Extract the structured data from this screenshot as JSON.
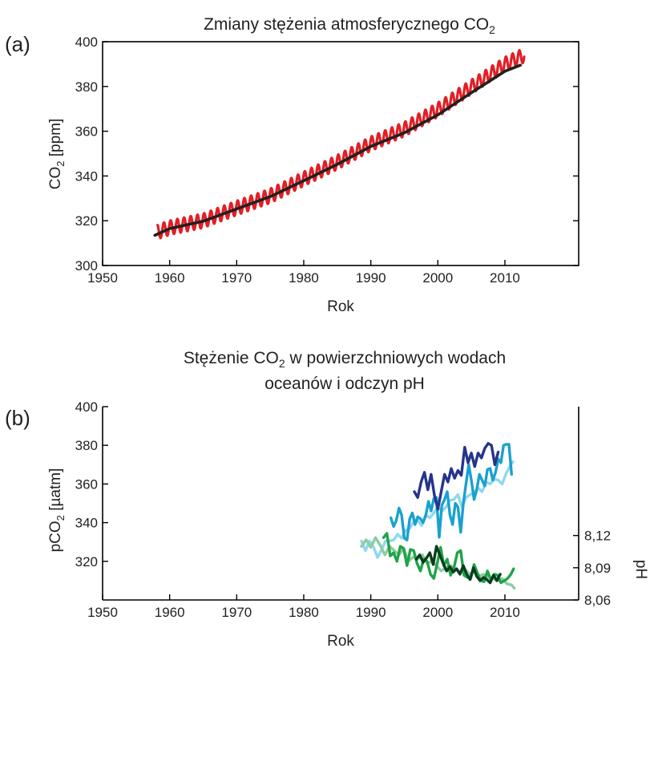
{
  "figure": {
    "panel_a_label": "(a)",
    "panel_b_label": "(b)"
  },
  "chart_data": [
    {
      "id": "a",
      "type": "line",
      "title": "Zmiany stężenia atmosferycznego CO",
      "title_subscript": "2",
      "xlabel": "Rok",
      "ylabel": "CO",
      "ylabel_subscript": "2",
      "ylabel_suffix": " [ppm]",
      "xlim": [
        1950,
        2021
      ],
      "ylim": [
        300,
        400
      ],
      "xticks": [
        1950,
        1960,
        1970,
        1980,
        1990,
        2000,
        2010
      ],
      "yticks": [
        300,
        320,
        340,
        360,
        380,
        400
      ],
      "colors": {
        "seasonal": "#e31e24",
        "trend": "#231f20"
      },
      "series": [
        {
          "key": "monthly",
          "color": "#e31e24",
          "start": 1958.2,
          "end": 2012.9,
          "amplitude": 3.2,
          "anchor_x": [
            1958.2,
            1960,
            1965,
            1970,
            1975,
            1980,
            1985,
            1990,
            1995,
            2000,
            2005,
            2010,
            2012.9
          ],
          "anchor_y": [
            315,
            316.9,
            320.0,
            325.7,
            331.1,
            338.7,
            346.1,
            354.4,
            360.9,
            369.6,
            379.8,
            389.9,
            394.0
          ]
        },
        {
          "key": "annual_mean",
          "color": "#231f20",
          "x": [
            1957.8,
            1960,
            1965,
            1970,
            1975,
            1980,
            1985,
            1990,
            1995,
            2000,
            2005,
            2010,
            2012.3
          ],
          "y": [
            313.5,
            316.5,
            319.8,
            325.3,
            330.8,
            337.9,
            345.2,
            353.2,
            359.3,
            367.3,
            377.2,
            386.8,
            389.5
          ]
        }
      ]
    },
    {
      "id": "b",
      "type": "line",
      "title_line1_pre": "Stężenie CO",
      "title_subscript": "2",
      "title_line1_post": " w powierzchniowych wodach",
      "title_line2": "oceanów i odczyn pH",
      "xlabel": "Rok",
      "ylabel": "pCO",
      "ylabel_subscript": "2",
      "ylabel_suffix": " [µatm]",
      "y2label": "pH",
      "xlim": [
        1950,
        2021
      ],
      "ylim": [
        300,
        400
      ],
      "y2lim": [
        8.06,
        8.24
      ],
      "xticks": [
        1950,
        1960,
        1970,
        1980,
        1990,
        2000,
        2010
      ],
      "yticks": [
        320,
        340,
        360,
        380,
        400
      ],
      "y2ticks": [
        "8,06",
        "8,09",
        "8,12"
      ],
      "y2tick_values": [
        8.06,
        8.09,
        8.12
      ],
      "series_pco2": [
        {
          "key": "pco2_light",
          "color": "#8ed8f0",
          "x": [
            1988.6,
            1989.2,
            1989.8,
            1990.4,
            1991.0,
            1991.6,
            1992.2,
            1992.8,
            1993.4,
            1994.0,
            1994.6,
            1995.2,
            1995.8,
            1996.4,
            1997.0,
            1997.6,
            1998.2,
            1998.8,
            1999.4,
            2000.0,
            2000.6,
            2001.2,
            2001.8,
            2002.4,
            2003.0,
            2003.6,
            2004.2,
            2004.8,
            2005.4,
            2006.0,
            2006.6,
            2007.2,
            2007.8,
            2008.4,
            2009.0,
            2009.6,
            2010.2,
            2010.8,
            2011.2
          ],
          "y": [
            330.5,
            325.5,
            330.5,
            327.5,
            322.0,
            326.0,
            330.5,
            330.5,
            331.0,
            334.0,
            332.0,
            336.0,
            337.0,
            340.5,
            341.0,
            338.5,
            344.0,
            342.5,
            345.0,
            348.0,
            346.0,
            348.0,
            351.5,
            352.0,
            354.5,
            348.0,
            353.0,
            354.5,
            355.5,
            358.0,
            356.0,
            361.0,
            360.0,
            362.5,
            362.0,
            360.0,
            365.5,
            369.5,
            371.5
          ]
        },
        {
          "key": "pco2_medium",
          "color": "#1aa1cf",
          "x": [
            1993.0,
            1993.4,
            1993.8,
            1994.2,
            1994.6,
            1995.0,
            1995.4,
            1995.8,
            1996.2,
            1996.6,
            1997.0,
            1997.4,
            1997.8,
            1998.2,
            1998.6,
            1999.0,
            1999.4,
            1999.8,
            2000.2,
            2000.6,
            2001.0,
            2001.4,
            2001.8,
            2002.2,
            2002.6,
            2003.0,
            2003.4,
            2003.8,
            2004.2,
            2004.6,
            2005.0,
            2005.4,
            2005.8,
            2006.2,
            2006.6,
            2007.0,
            2007.4,
            2007.8,
            2008.2,
            2008.6,
            2009.0,
            2009.4,
            2009.8,
            2010.2,
            2010.6,
            2011.0
          ],
          "y": [
            342.5,
            338.0,
            341.0,
            347.5,
            344.0,
            332.0,
            331.0,
            342.0,
            345.0,
            339.0,
            343.0,
            342.0,
            340.0,
            344.0,
            351.0,
            346.0,
            352.5,
            353.0,
            332.5,
            349.0,
            352.0,
            356.0,
            344.0,
            339.0,
            350.0,
            348.0,
            335.0,
            350.0,
            360.0,
            370.0,
            362.0,
            352.0,
            357.0,
            365.0,
            362.0,
            359.0,
            367.5,
            368.0,
            362.0,
            366.0,
            373.0,
            371.0,
            380.0,
            380.5,
            380.5,
            365.0
          ]
        },
        {
          "key": "pco2_dark",
          "color": "#27348b",
          "x": [
            1996.5,
            1997.0,
            1997.5,
            1998.0,
            1998.5,
            1999.0,
            1999.5,
            2000.0,
            2000.5,
            2001.0,
            2001.5,
            2002.0,
            2002.5,
            2003.0,
            2003.5,
            2004.0,
            2004.5,
            2005.0,
            2005.5,
            2006.0,
            2006.5,
            2007.0,
            2007.5,
            2008.0,
            2008.5,
            2009.0
          ],
          "y": [
            356.0,
            353.0,
            361.0,
            366.0,
            357.0,
            365.0,
            354.0,
            347.0,
            356.0,
            365.0,
            361.0,
            368.0,
            363.0,
            367.0,
            364.5,
            379.0,
            371.0,
            376.0,
            369.0,
            376.0,
            373.5,
            378.5,
            381.0,
            380.0,
            370.0,
            376.5
          ]
        }
      ],
      "series_ph": [
        {
          "key": "ph_light",
          "color": "#8dcc9f",
          "x": [
            1988.6,
            1989.3,
            1990.0,
            1990.7,
            1991.4,
            1992.1,
            1992.8,
            1993.5,
            1994.2,
            1994.9,
            1995.6,
            1996.3,
            1997.0,
            1997.7,
            1998.4,
            1999.1,
            1999.8,
            2000.5,
            2001.2,
            2001.9,
            2002.6,
            2003.3,
            2004.0,
            2004.7,
            2005.4,
            2006.1,
            2006.8,
            2007.5,
            2008.2,
            2008.9,
            2009.6,
            2010.3,
            2011.0,
            2011.4
          ],
          "y": [
            8.11,
            8.116,
            8.109,
            8.118,
            8.111,
            8.102,
            8.11,
            8.106,
            8.102,
            8.108,
            8.096,
            8.1,
            8.098,
            8.102,
            8.094,
            8.096,
            8.092,
            8.087,
            8.09,
            8.092,
            8.089,
            8.086,
            8.089,
            8.084,
            8.086,
            8.082,
            8.084,
            8.081,
            8.08,
            8.078,
            8.08,
            8.075,
            8.074,
            8.071
          ]
        },
        {
          "key": "ph_medium",
          "color": "#1fa349",
          "x": [
            1991.9,
            1992.4,
            1992.9,
            1993.4,
            1993.9,
            1994.4,
            1994.9,
            1995.4,
            1995.9,
            1996.4,
            1996.9,
            1997.4,
            1997.9,
            1998.4,
            1998.9,
            1999.4,
            1999.9,
            2000.4,
            2000.9,
            2001.4,
            2001.9,
            2002.4,
            2002.9,
            2003.4,
            2003.9,
            2004.4,
            2004.9,
            2005.4,
            2005.9,
            2006.4,
            2006.9,
            2007.4,
            2007.9,
            2008.4,
            2008.9,
            2009.4,
            2009.9,
            2010.4,
            2010.9,
            2011.3
          ],
          "y": [
            8.118,
            8.122,
            8.101,
            8.104,
            8.096,
            8.11,
            8.108,
            8.092,
            8.107,
            8.106,
            8.094,
            8.087,
            8.098,
            8.096,
            8.084,
            8.08,
            8.094,
            8.109,
            8.092,
            8.098,
            8.083,
            8.09,
            8.104,
            8.106,
            8.083,
            8.081,
            8.08,
            8.093,
            8.085,
            8.078,
            8.077,
            8.087,
            8.079,
            8.084,
            8.083,
            8.076,
            8.078,
            8.08,
            8.084,
            8.089
          ]
        },
        {
          "key": "ph_dark",
          "color": "#0b3d1d",
          "x": [
            1996.8,
            1997.3,
            1997.8,
            1998.3,
            1998.8,
            1999.3,
            1999.8,
            2000.3,
            2000.8,
            2001.3,
            2001.8,
            2002.3,
            2002.8,
            2003.3,
            2003.8,
            2004.3,
            2004.8,
            2005.3,
            2005.8,
            2006.3,
            2006.8,
            2007.3,
            2007.8,
            2008.3,
            2008.8,
            2009.3
          ],
          "y": [
            8.098,
            8.102,
            8.095,
            8.099,
            8.104,
            8.093,
            8.11,
            8.102,
            8.094,
            8.087,
            8.091,
            8.086,
            8.089,
            8.084,
            8.092,
            8.084,
            8.079,
            8.09,
            8.082,
            8.078,
            8.081,
            8.079,
            8.076,
            8.083,
            8.078,
            8.084
          ]
        }
      ]
    }
  ]
}
